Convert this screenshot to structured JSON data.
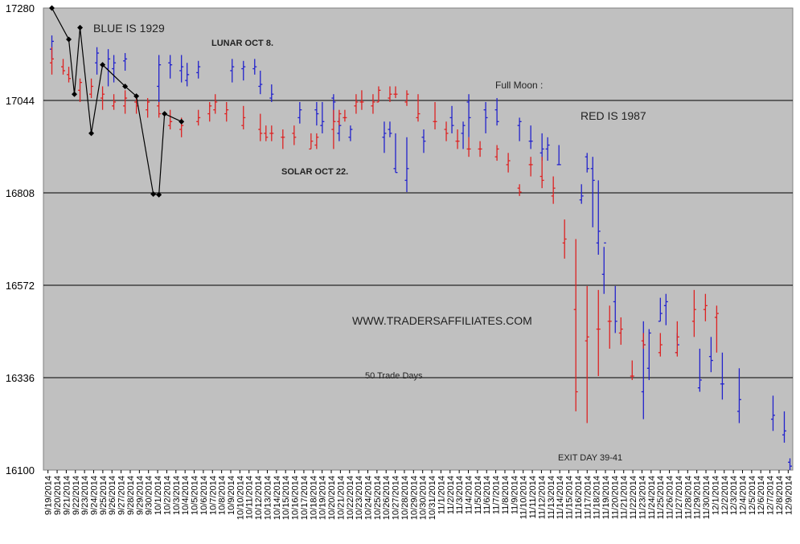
{
  "chart_data": {
    "type": "ohlc-comparison",
    "ylim": [
      16100,
      17280
    ],
    "y_ticks": [
      "17280",
      "17044",
      "16808",
      "16572",
      "16336",
      "16100"
    ],
    "grid": "horizontal",
    "x_dates": [
      "9/19/2014",
      "9/20/2014",
      "9/21/2014",
      "9/22/2014",
      "9/23/2014",
      "9/24/2014",
      "9/25/2014",
      "9/26/2014",
      "9/27/2014",
      "9/28/2014",
      "9/29/2014",
      "9/30/2014",
      "10/1/2014",
      "10/2/2014",
      "10/3/2014",
      "10/4/2014",
      "10/5/2014",
      "10/6/2014",
      "10/7/2014",
      "10/8/2014",
      "10/9/2014",
      "10/10/2014",
      "10/11/2014",
      "10/12/2014",
      "10/13/2014",
      "10/14/2014",
      "10/15/2014",
      "10/16/2014",
      "10/17/2014",
      "10/18/2014",
      "10/19/2014",
      "10/20/2014",
      "10/21/2014",
      "10/22/2014",
      "10/23/2014",
      "10/24/2014",
      "10/25/2014",
      "10/26/2014",
      "10/27/2014",
      "10/28/2014",
      "10/29/2014",
      "10/30/2014",
      "10/31/2014",
      "11/1/2014",
      "11/2/2014",
      "11/3/2014",
      "11/4/2014",
      "11/5/2014",
      "11/6/2014",
      "11/7/2014",
      "11/8/2014",
      "11/9/2014",
      "11/10/2014",
      "11/11/2014",
      "11/12/2014",
      "11/13/2014",
      "11/14/2014",
      "11/15/2014",
      "11/16/2014",
      "11/17/2014",
      "11/18/2014",
      "11/19/2014",
      "11/20/2014",
      "11/21/2014",
      "11/22/2014",
      "11/23/2014",
      "11/24/2014",
      "11/25/2014",
      "11/26/2014",
      "11/27/2014",
      "11/28/2014",
      "11/29/2014",
      "11/30/2014",
      "12/1/2014",
      "12/2/2014",
      "12/3/2014",
      "12/4/2014",
      "12/5/2014",
      "12/6/2014",
      "12/7/2014",
      "12/8/2014",
      "12/9/2014"
    ],
    "annotations": {
      "blue": "BLUE IS 1929",
      "red": "RED IS 1987",
      "lunar": "LUNAR OCT 8.",
      "solar": "SOLAR OCT 22.",
      "moon": "Full Moon :",
      "site": "WWW.TRADERSAFFILIATES.COM",
      "days": "50 Trade Days",
      "exit": "EXIT DAY 39-41"
    },
    "series": [
      {
        "name": "BLUE IS 1929",
        "color": "#2222cc",
        "values": [
          [
            1,
            17175,
            17210,
            17150,
            17195
          ],
          [
            9,
            17140,
            17180,
            17110,
            17165
          ],
          [
            11,
            17125,
            17175,
            17080,
            17150
          ],
          [
            12,
            17125,
            17160,
            17090,
            17140
          ],
          [
            14,
            17145,
            17165,
            17120,
            17150
          ],
          [
            20,
            17080,
            17160,
            17040,
            17135
          ],
          [
            22,
            17140,
            17160,
            17100,
            17135
          ],
          [
            24,
            17120,
            17160,
            17090,
            17130
          ],
          [
            25,
            17095,
            17140,
            17080,
            17110
          ],
          [
            27,
            17115,
            17145,
            17100,
            17130
          ],
          [
            33,
            17120,
            17150,
            17090,
            17130
          ],
          [
            35,
            17125,
            17145,
            17095,
            17130
          ],
          [
            37,
            17125,
            17150,
            17110,
            17130
          ],
          [
            38,
            17080,
            17120,
            17060,
            17085
          ],
          [
            40,
            17050,
            17085,
            17040,
            17060
          ],
          [
            45,
            17000,
            17040,
            16985,
            17020
          ],
          [
            48,
            17020,
            17040,
            16980,
            17010
          ],
          [
            49,
            16980,
            17040,
            16960,
            16990
          ],
          [
            51,
            17050,
            17060,
            16990,
            17040
          ],
          [
            52,
            16960,
            17000,
            16940,
            16980
          ],
          [
            54,
            16950,
            16980,
            16940,
            16970
          ],
          [
            60,
            16950,
            16990,
            16910,
            16960
          ],
          [
            61,
            16970,
            16990,
            16950,
            16960
          ],
          [
            62,
            16870,
            16960,
            16860,
            16860
          ],
          [
            64,
            16840,
            16950,
            16810,
            16870
          ],
          [
            67,
            16950,
            16970,
            16910,
            16940
          ],
          [
            72,
            17000,
            17030,
            16960,
            16980
          ],
          [
            74,
            16960,
            16990,
            16920,
            16980
          ],
          [
            75,
            17040,
            17060,
            16950,
            17000
          ],
          [
            78,
            17020,
            17040,
            16960,
            17000
          ],
          [
            80,
            17020,
            17050,
            16980,
            16990
          ],
          [
            84,
            16980,
            17000,
            16940,
            16990
          ],
          [
            86,
            16940,
            16980,
            16920,
            16940
          ],
          [
            88,
            16910,
            16960,
            16890,
            16920
          ],
          [
            89,
            16920,
            16950,
            16890,
            16930
          ],
          [
            91,
            16880,
            16930,
            16880,
            16880
          ],
          [
            95,
            16790,
            16830,
            16780,
            16800
          ],
          [
            96,
            16900,
            16910,
            16860,
            16870
          ],
          [
            97,
            16870,
            16900,
            16720,
            16840
          ],
          [
            98,
            16680,
            16840,
            16650,
            16710
          ],
          [
            99,
            16600,
            16670,
            16550,
            16680
          ],
          [
            101,
            16530,
            16570,
            16450,
            16480
          ],
          [
            106,
            16300,
            16480,
            16230,
            16420
          ],
          [
            107,
            16360,
            16460,
            16330,
            16450
          ],
          [
            109,
            16480,
            16540,
            16480,
            16500
          ],
          [
            110,
            16520,
            16550,
            16470,
            16530
          ],
          [
            112,
            16400,
            16450,
            16430,
            16420
          ],
          [
            116,
            16310,
            16410,
            16300,
            16330
          ],
          [
            118,
            16390,
            16440,
            16350,
            16380
          ],
          [
            120,
            16320,
            16400,
            16280,
            16320
          ],
          [
            123,
            16250,
            16360,
            16220,
            16280
          ],
          [
            129,
            16230,
            16290,
            16200,
            16240
          ],
          [
            131,
            16190,
            16250,
            16170,
            16200
          ],
          [
            132,
            16120,
            16130,
            16100,
            16110
          ]
        ]
      },
      {
        "name": "RED IS 1987",
        "color": "#dd2222",
        "values": [
          [
            1,
            17140,
            17180,
            17110,
            17150
          ],
          [
            3,
            17130,
            17150,
            17110,
            17120
          ],
          [
            4,
            17110,
            17130,
            17090,
            17100
          ],
          [
            6,
            17070,
            17100,
            17040,
            17090
          ],
          [
            8,
            17060,
            17100,
            17050,
            17080
          ],
          [
            10,
            17050,
            17080,
            17020,
            17060
          ],
          [
            12,
            17030,
            17060,
            17020,
            17040
          ],
          [
            14,
            17030,
            17070,
            17010,
            17050
          ],
          [
            16,
            17040,
            17050,
            17010,
            17030
          ],
          [
            18,
            17020,
            17050,
            17000,
            17040
          ],
          [
            20,
            17030,
            17040,
            17000,
            17010
          ],
          [
            22,
            16980,
            17020,
            16970,
            16990
          ],
          [
            24,
            16970,
            17000,
            16950,
            16980
          ],
          [
            27,
            16990,
            17020,
            16980,
            17000
          ],
          [
            29,
            17010,
            17040,
            16990,
            17030
          ],
          [
            30,
            17020,
            17060,
            17010,
            17040
          ],
          [
            32,
            17010,
            17040,
            16990,
            17020
          ],
          [
            35,
            16980,
            17030,
            16970,
            17000
          ],
          [
            38,
            16970,
            17010,
            16940,
            16960
          ],
          [
            39,
            16960,
            16980,
            16940,
            16950
          ],
          [
            40,
            16960,
            16980,
            16940,
            16960
          ],
          [
            42,
            16950,
            16970,
            16920,
            16950
          ],
          [
            44,
            16960,
            16980,
            16930,
            16950
          ],
          [
            47,
            16920,
            16960,
            16920,
            16940
          ],
          [
            48,
            16930,
            16960,
            16920,
            16950
          ],
          [
            51,
            16970,
            17020,
            16920,
            16990
          ],
          [
            52,
            16990,
            17020,
            16980,
            17010
          ],
          [
            53,
            17000,
            17020,
            16990,
            17000
          ],
          [
            55,
            17030,
            17060,
            17010,
            17040
          ],
          [
            56,
            17040,
            17070,
            17020,
            17040
          ],
          [
            58,
            17030,
            17060,
            17010,
            17040
          ],
          [
            59,
            17040,
            17080,
            17040,
            17070
          ],
          [
            61,
            17050,
            17080,
            17040,
            17060
          ],
          [
            62,
            17060,
            17080,
            17050,
            17060
          ],
          [
            64,
            17040,
            17070,
            17030,
            17060
          ],
          [
            66,
            17000,
            17060,
            16990,
            17010
          ],
          [
            69,
            16990,
            17040,
            16970,
            16990
          ],
          [
            71,
            16970,
            16990,
            16940,
            16960
          ],
          [
            73,
            16940,
            16970,
            16920,
            16940
          ],
          [
            75,
            16920,
            16950,
            16900,
            16920
          ],
          [
            77,
            16920,
            16940,
            16900,
            16920
          ],
          [
            80,
            16900,
            16930,
            16890,
            16920
          ],
          [
            82,
            16880,
            16910,
            16860,
            16890
          ],
          [
            84,
            16820,
            16830,
            16800,
            16810
          ],
          [
            86,
            16880,
            16900,
            16850,
            16880
          ],
          [
            88,
            16850,
            16900,
            16820,
            16840
          ],
          [
            90,
            16800,
            16850,
            16780,
            16820
          ],
          [
            92,
            16680,
            16740,
            16640,
            16690
          ],
          [
            94,
            16510,
            16690,
            16250,
            16300
          ],
          [
            96,
            16430,
            16570,
            16220,
            16440
          ],
          [
            98,
            16460,
            16560,
            16340,
            16460
          ],
          [
            100,
            16480,
            16520,
            16410,
            16480
          ],
          [
            102,
            16450,
            16490,
            16420,
            16460
          ],
          [
            104,
            16340,
            16380,
            16330,
            16340
          ],
          [
            106,
            16430,
            16450,
            16410,
            16420
          ],
          [
            109,
            16400,
            16450,
            16390,
            16420
          ],
          [
            112,
            16400,
            16480,
            16390,
            16440
          ],
          [
            115,
            16480,
            16560,
            16440,
            16510
          ],
          [
            117,
            16510,
            16550,
            16480,
            16520
          ],
          [
            119,
            16490,
            16520,
            16400,
            16500
          ]
        ]
      },
      {
        "name": "",
        "color": "#000000",
        "type": "line",
        "values": [
          [
            1,
            17280
          ],
          [
            4,
            17200
          ],
          [
            5,
            17060
          ],
          [
            6,
            17230
          ],
          [
            8,
            16960
          ],
          [
            10,
            17135
          ],
          [
            14,
            17080
          ],
          [
            16,
            17055
          ],
          [
            19,
            16805
          ],
          [
            20,
            16803
          ],
          [
            21,
            17010
          ],
          [
            24,
            16990
          ]
        ]
      }
    ]
  }
}
